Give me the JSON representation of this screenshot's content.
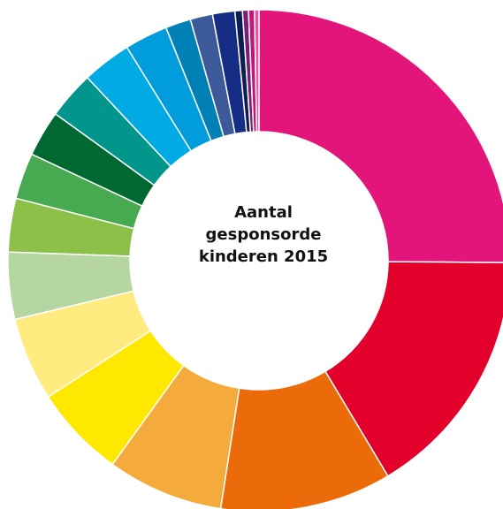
{
  "chart_data": {
    "type": "donut",
    "title_lines": [
      "Aantal",
      "gesponsorde",
      "kinderen 2015"
    ],
    "start_angle_deg": 0,
    "direction": "clockwise",
    "slices": [
      {
        "value": 26.2,
        "color": "#E3157A"
      },
      {
        "value": 17.0,
        "color": "#E3002B"
      },
      {
        "value": 11.5,
        "color": "#EB6A0A"
      },
      {
        "value": 7.8,
        "color": "#F5AA3C"
      },
      {
        "value": 6.2,
        "color": "#FFE800"
      },
      {
        "value": 5.6,
        "color": "#FFEB80"
      },
      {
        "value": 4.5,
        "color": "#B5D6A0"
      },
      {
        "value": 3.6,
        "color": "#8DC049"
      },
      {
        "value": 3.1,
        "color": "#48AA50"
      },
      {
        "value": 3.1,
        "color": "#006831"
      },
      {
        "value": 3.2,
        "color": "#00968C"
      },
      {
        "value": 3.3,
        "color": "#00ABE4"
      },
      {
        "value": 2.9,
        "color": "#009CDC"
      },
      {
        "value": 1.7,
        "color": "#0080B4"
      },
      {
        "value": 1.5,
        "color": "#3C5A9A"
      },
      {
        "value": 1.5,
        "color": "#162D85"
      },
      {
        "value": 0.5,
        "color": "#0F1D55"
      },
      {
        "value": 0.4,
        "color": "#7A1E78"
      },
      {
        "value": 0.4,
        "color": "#C4157A"
      },
      {
        "value": 0.3,
        "color": "#F04EA0"
      }
    ]
  }
}
